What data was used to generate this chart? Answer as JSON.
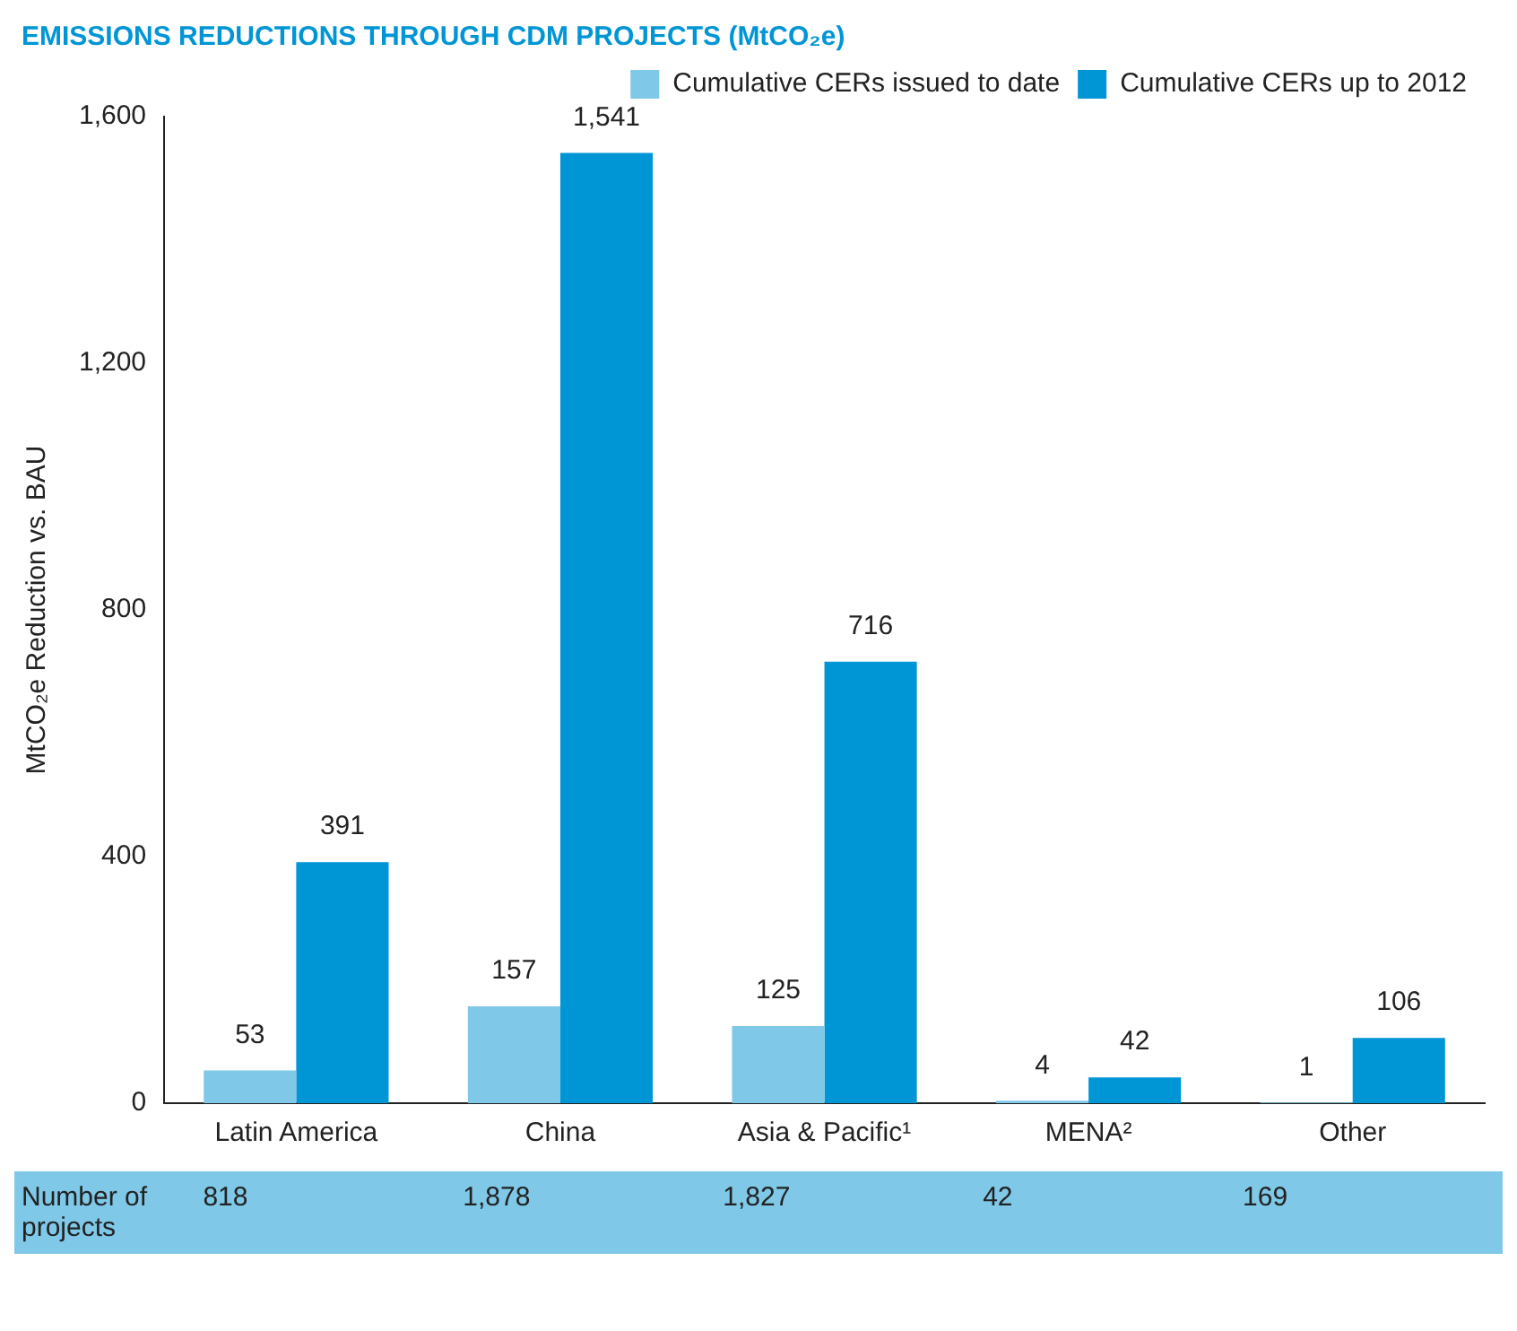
{
  "chart_data": {
    "type": "bar",
    "title": "EMISSIONS REDUCTIONS THROUGH CDM PROJECTS (MtCO₂e)",
    "ylabel": "MtCO₂e Reduction vs. BAU",
    "categories": [
      "Latin America",
      "China",
      "Asia & Pacific¹",
      "MENA²",
      "Other"
    ],
    "series": [
      {
        "name": "Cumulative CERs issued to date",
        "color": "#7fc8e8",
        "values": [
          53,
          157,
          125,
          4,
          1
        ],
        "value_labels": [
          "53",
          "157",
          "125",
          "4",
          "1"
        ]
      },
      {
        "name": "Cumulative CERs up to 2012",
        "color": "#0096d6",
        "values": [
          391,
          1541,
          716,
          42,
          106
        ],
        "value_labels": [
          "391",
          "1,541",
          "716",
          "42",
          "106"
        ]
      }
    ],
    "ylim": [
      0,
      1600
    ],
    "yticks": [
      0,
      400,
      800,
      {
        "value": 1200,
        "label": "1,200"
      },
      {
        "value": 1600,
        "label": "1,600"
      }
    ],
    "grid": false,
    "legend": "top right",
    "annotations": [
      "Number of projects",
      "818",
      "1,878",
      "1,827",
      "42",
      "169"
    ]
  }
}
